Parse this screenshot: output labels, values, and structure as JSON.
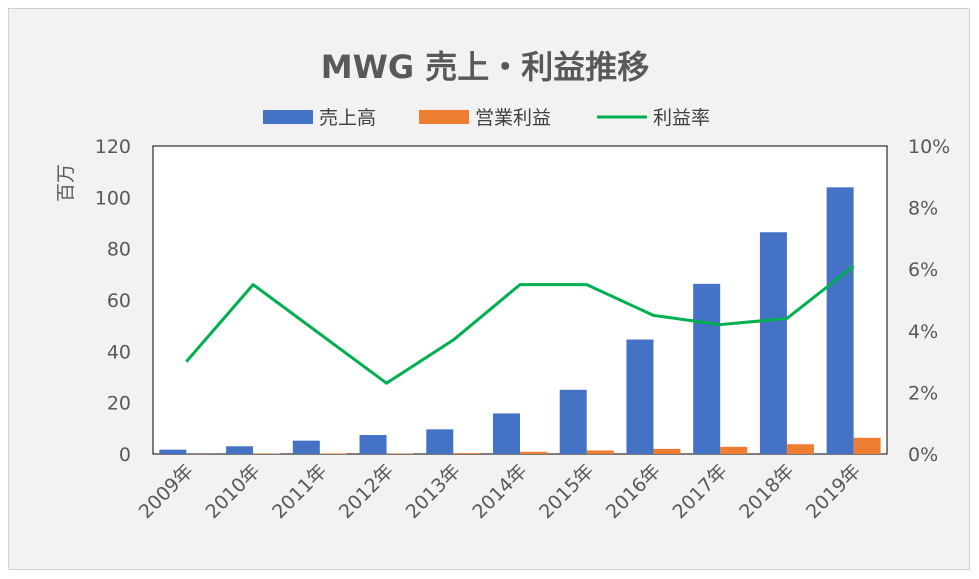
{
  "chart_data": {
    "type": "bar",
    "title": "MWG 売上・利益推移",
    "ylabel": "百万",
    "categories": [
      "2009年",
      "2010年",
      "2011年",
      "2012年",
      "2013年",
      "2014年",
      "2015年",
      "2016年",
      "2017年",
      "2018年",
      "2019年"
    ],
    "ylim": [
      0,
      120
    ],
    "yticks": [
      "0",
      "20",
      "40",
      "60",
      "80",
      "100",
      "120"
    ],
    "y2lim": [
      0,
      10
    ],
    "y2ticks": [
      "0%",
      "2%",
      "4%",
      "6%",
      "8%",
      "10%"
    ],
    "legend_position": "top",
    "grid": false,
    "series": [
      {
        "name": "売上高",
        "kind": "bar",
        "axis": "left",
        "color": "#4472c4",
        "values": [
          1.7,
          3.0,
          5.2,
          7.4,
          9.6,
          15.8,
          25.0,
          44.6,
          66.3,
          86.4,
          103.9
        ]
      },
      {
        "name": "営業利益",
        "kind": "bar",
        "axis": "left",
        "color": "#ed7d31",
        "values": [
          0.05,
          0.16,
          0.22,
          0.17,
          0.35,
          0.87,
          1.38,
          2.0,
          2.8,
          3.8,
          6.3
        ]
      },
      {
        "name": "利益率",
        "kind": "line",
        "axis": "right",
        "color": "#00b050",
        "values": [
          3.0,
          5.5,
          3.9,
          2.3,
          3.7,
          5.5,
          5.5,
          4.5,
          4.2,
          4.4,
          6.1
        ]
      }
    ]
  }
}
